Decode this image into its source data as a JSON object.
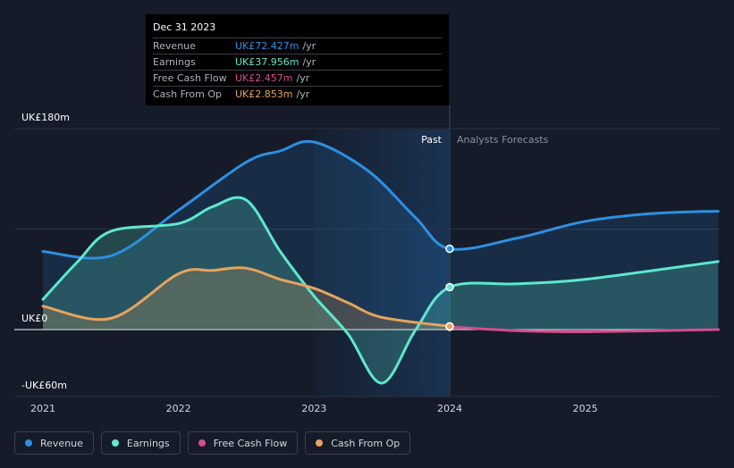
{
  "chart_data": {
    "type": "line",
    "x_ticks": [
      "2021",
      "2022",
      "2023",
      "2024",
      "2025"
    ],
    "y_ticks": [
      "UK£180m",
      "UK£0",
      "-UK£60m"
    ],
    "ylim": [
      -60,
      180
    ],
    "xlim": [
      2021.0,
      2025.98
    ],
    "regions": {
      "past_label": "Past",
      "forecast_label": "Analysts Forecasts",
      "divider_x": 2024.0
    },
    "grid": true,
    "legend_placement": "bottom-left",
    "series": [
      {
        "name": "Revenue",
        "color": "#2e8fe0",
        "points": [
          [
            2021.0,
            70
          ],
          [
            2021.5,
            66
          ],
          [
            2022.0,
            107
          ],
          [
            2022.5,
            150
          ],
          [
            2022.75,
            160
          ],
          [
            2023.0,
            168
          ],
          [
            2023.4,
            142
          ],
          [
            2023.75,
            100
          ],
          [
            2024.0,
            72.4
          ],
          [
            2024.5,
            82
          ],
          [
            2025.0,
            97
          ],
          [
            2025.5,
            104
          ],
          [
            2025.98,
            106
          ]
        ]
      },
      {
        "name": "Earnings",
        "color": "#5ee8cc",
        "points": [
          [
            2021.0,
            27
          ],
          [
            2021.25,
            60
          ],
          [
            2021.5,
            88
          ],
          [
            2022.0,
            95
          ],
          [
            2022.25,
            110
          ],
          [
            2022.5,
            116
          ],
          [
            2022.75,
            70
          ],
          [
            2023.0,
            30
          ],
          [
            2023.25,
            -4
          ],
          [
            2023.5,
            -48
          ],
          [
            2023.75,
            0
          ],
          [
            2024.0,
            38
          ],
          [
            2024.5,
            41
          ],
          [
            2025.0,
            45
          ],
          [
            2025.98,
            61
          ]
        ]
      },
      {
        "name": "Free Cash Flow",
        "color": "#d64d8e",
        "points": [
          [
            2024.0,
            2.5
          ],
          [
            2024.5,
            -1
          ],
          [
            2025.0,
            -2
          ],
          [
            2025.98,
            0
          ]
        ]
      },
      {
        "name": "Cash From Op",
        "color": "#e8a35c",
        "points": [
          [
            2021.0,
            21
          ],
          [
            2021.5,
            10
          ],
          [
            2022.0,
            50
          ],
          [
            2022.25,
            53
          ],
          [
            2022.5,
            55
          ],
          [
            2022.75,
            45
          ],
          [
            2023.0,
            37
          ],
          [
            2023.25,
            24
          ],
          [
            2023.5,
            11
          ],
          [
            2024.0,
            2.9
          ]
        ]
      }
    ]
  },
  "tooltip": {
    "date": "Dec 31 2023",
    "rows": [
      {
        "label": "Revenue",
        "value": "UK£72.427m",
        "unit": "/yr",
        "color": "#2e8fe0"
      },
      {
        "label": "Earnings",
        "value": "UK£37.956m",
        "unit": "/yr",
        "color": "#5ee8cc"
      },
      {
        "label": "Free Cash Flow",
        "value": "UK£2.457m",
        "unit": "/yr",
        "color": "#d64d8e"
      },
      {
        "label": "Cash From Op",
        "value": "UK£2.853m",
        "unit": "/yr",
        "color": "#e8a35c"
      }
    ]
  },
  "legend": [
    {
      "label": "Revenue",
      "color": "#2e8fe0"
    },
    {
      "label": "Earnings",
      "color": "#5ee8cc"
    },
    {
      "label": "Free Cash Flow",
      "color": "#d64d8e"
    },
    {
      "label": "Cash From Op",
      "color": "#e8a35c"
    }
  ]
}
